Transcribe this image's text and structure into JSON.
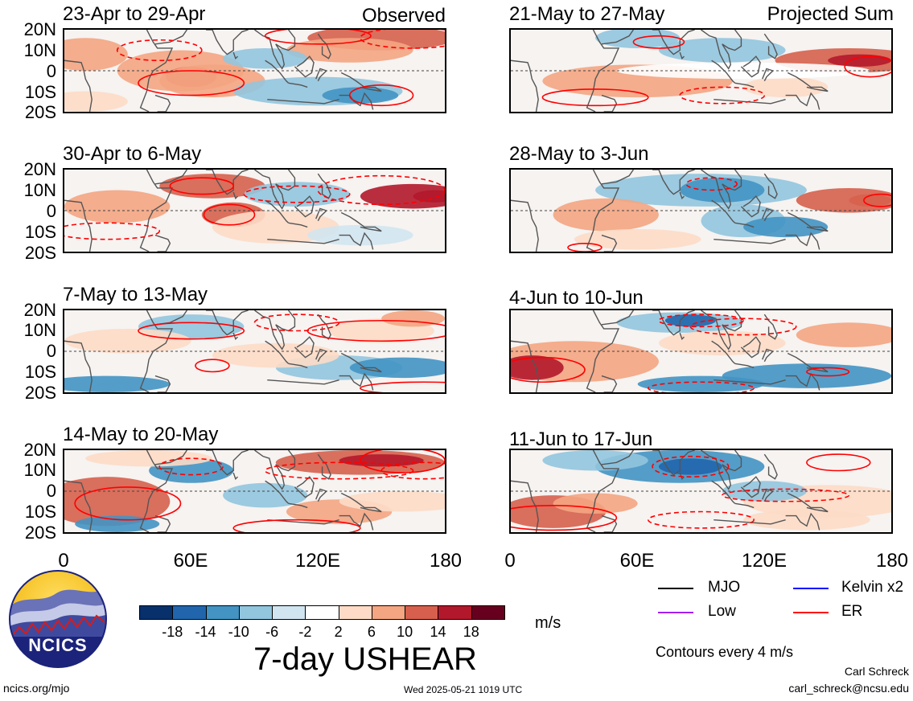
{
  "panels": [
    {
      "title": "23-Apr to 29-Apr",
      "tag": "Observed"
    },
    {
      "title": "21-May to 27-May",
      "tag": "Projected Sum"
    },
    {
      "title": "30-Apr to 6-May",
      "tag": ""
    },
    {
      "title": "28-May to 3-Jun",
      "tag": ""
    },
    {
      "title": "7-May to 13-May",
      "tag": ""
    },
    {
      "title": "4-Jun to 10-Jun",
      "tag": ""
    },
    {
      "title": "14-May to 20-May",
      "tag": ""
    },
    {
      "title": "11-Jun to 17-Jun",
      "tag": ""
    }
  ],
  "lat_labels": [
    "20N",
    "10N",
    "0",
    "10S",
    "20S"
  ],
  "lon_labels": [
    "0",
    "60E",
    "120E",
    "180"
  ],
  "colorbar": {
    "colors": [
      "#08306b",
      "#2166ac",
      "#4393c3",
      "#92c5de",
      "#d1e5f0",
      "#ffffff",
      "#fddbc7",
      "#f4a582",
      "#d6604d",
      "#b2182b",
      "#67001f"
    ],
    "tick_labels": [
      "-18",
      "-14",
      "-10",
      "-6",
      "-2",
      "2",
      "6",
      "10",
      "14",
      "18"
    ],
    "units": "m/s",
    "variable": "7-day USHEAR"
  },
  "legend": {
    "items": [
      {
        "label": "MJO",
        "color": "#000000"
      },
      {
        "label": "Kelvin x2",
        "color": "#0000ff"
      },
      {
        "label": "Low",
        "color": "#a020f0"
      },
      {
        "label": "ER",
        "color": "#ff0000"
      }
    ],
    "note": "Contours every 4 m/s"
  },
  "logo": {
    "text": "NCICS"
  },
  "footer": {
    "url": "ncics.org/mjo",
    "timestamp": "Wed 2025-05-21 1019 UTC",
    "author": "Carl Schreck",
    "email": "carl_schreck@ncsu.edu"
  }
}
